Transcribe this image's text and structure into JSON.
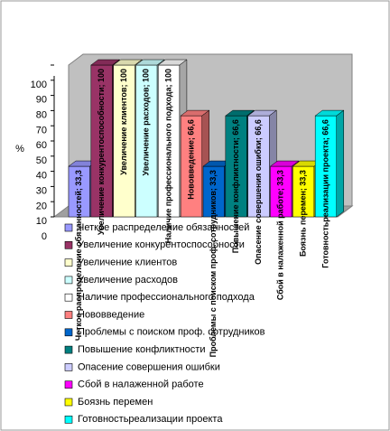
{
  "chart_data": {
    "type": "bar",
    "ylabel": "%",
    "ylim": [
      0,
      100
    ],
    "yticks": [
      0,
      10,
      20,
      30,
      40,
      50,
      60,
      70,
      80,
      90,
      100
    ],
    "grid": false,
    "series": [
      {
        "name": "Четкое распределение обязанностей",
        "color": "#9999ff",
        "values": [
          33.3
        ],
        "value_labels": [
          "Четкое распределение обязанностей; 33,3"
        ]
      },
      {
        "name": "Увеличение конкурентоспособности",
        "color": "#993366",
        "values": [
          100
        ],
        "value_labels": [
          "Увеличение конкурентоспособности; 100"
        ]
      },
      {
        "name": "Увеличение клиентов",
        "color": "#ffffcc",
        "values": [
          100
        ],
        "value_labels": [
          "Увеличение клиентов; 100"
        ]
      },
      {
        "name": "Увеличение расходов",
        "color": "#ccffff",
        "values": [
          100
        ],
        "value_labels": [
          "Увеличение расходов; 100"
        ]
      },
      {
        "name": "Наличие профессионального подхода",
        "color": "#ffffff",
        "values": [
          100
        ],
        "value_labels": [
          "Наличие профессионального подхода; 100"
        ]
      },
      {
        "name": "Нововведение",
        "color": "#ff8080",
        "values": [
          66.6
        ],
        "value_labels": [
          "Нововведение; 66,6"
        ]
      },
      {
        "name": "Проблемы с поиском проф. сотрудников",
        "color": "#0066cc",
        "values": [
          33.3
        ],
        "value_labels": [
          "Проблемы с поиском проф. сотрудников; 33,3"
        ]
      },
      {
        "name": "Повышение конфликтности",
        "color": "#008080",
        "values": [
          66.6
        ],
        "value_labels": [
          "Повышение конфликтности; 66,6"
        ]
      },
      {
        "name": "Опасение совершения ошибки",
        "color": "#ccccff",
        "values": [
          66.6
        ],
        "value_labels": [
          "Опасение совершения ошибки; 66,6"
        ]
      },
      {
        "name": "Сбой в налаженной работе",
        "color": "#ff00ff",
        "values": [
          33.3
        ],
        "value_labels": [
          "Сбой в налаженной работе; 33,3"
        ]
      },
      {
        "name": "Боязнь перемен",
        "color": "#ffff00",
        "values": [
          33.3
        ],
        "value_labels": [
          "Боязнь перемен; 33,3"
        ]
      },
      {
        "name": "Готовностьреализации проекта",
        "color": "#00ffff",
        "values": [
          66.6
        ],
        "value_labels": [
          "Готовностьреализации проекта; 66,6"
        ]
      }
    ]
  }
}
